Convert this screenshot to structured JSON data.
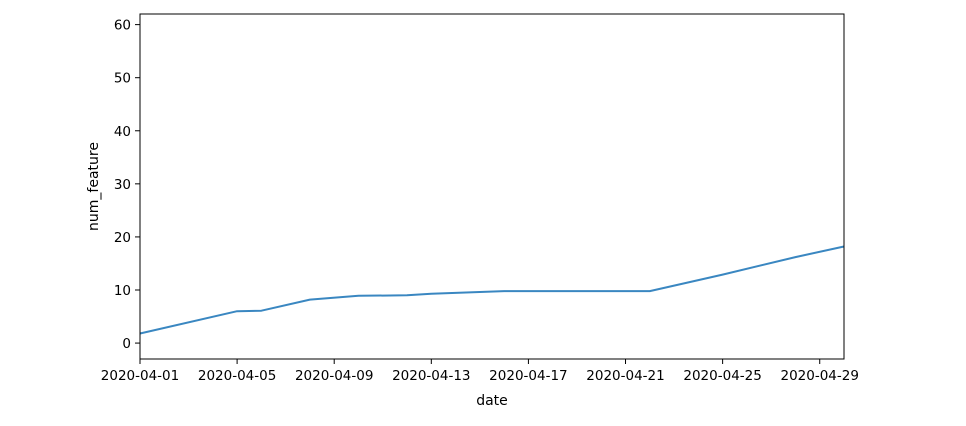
{
  "chart_data": {
    "type": "line",
    "title": "",
    "xlabel": "date",
    "ylabel": "num_feature",
    "xlim": [
      "2020-04-01",
      "2020-04-30"
    ],
    "ylim": [
      -3,
      62
    ],
    "x_ticks": [
      "2020-04-01",
      "2020-04-05",
      "2020-04-09",
      "2020-04-13",
      "2020-04-17",
      "2020-04-21",
      "2020-04-25",
      "2020-04-29"
    ],
    "y_ticks": [
      0,
      10,
      20,
      30,
      40,
      50,
      60
    ],
    "grid": false,
    "legend": "none",
    "line_color": "#3a87c1",
    "series": [
      {
        "x": [
          "2020-04-01",
          "2020-04-05",
          "2020-04-06",
          "2020-04-08",
          "2020-04-10",
          "2020-04-12",
          "2020-04-13",
          "2020-04-16",
          "2020-04-22",
          "2020-04-25",
          "2020-04-28",
          "2020-04-30"
        ],
        "y": [
          1.8,
          6.0,
          6.1,
          8.2,
          8.9,
          9.0,
          9.3,
          9.8,
          9.8,
          12.9,
          16.2,
          18.2
        ]
      }
    ]
  }
}
